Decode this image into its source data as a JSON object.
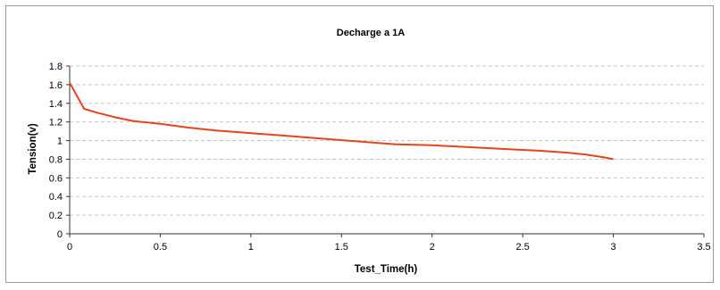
{
  "chart_data": {
    "type": "line",
    "title": "Decharge a 1A",
    "xlabel": "Test_Time(h)",
    "ylabel": "Tension(v)",
    "xlim": [
      0,
      3.5
    ],
    "ylim": [
      0,
      1.8
    ],
    "xticks": [
      "0",
      "0.5",
      "1",
      "1.5",
      "2",
      "2.5",
      "3",
      "3.5"
    ],
    "yticks": [
      "0",
      "0.2",
      "0.4",
      "0.6",
      "0.8",
      "1",
      "1.2",
      "1.4",
      "1.6",
      "1.8"
    ],
    "grid": "horizontal dashed",
    "legend": "none",
    "line_color": "#e8431a",
    "series": [
      {
        "x": [
          0,
          0.08,
          0.15,
          0.25,
          0.35,
          0.5,
          0.65,
          0.8,
          1.0,
          1.2,
          1.4,
          1.6,
          1.8,
          2.0,
          2.2,
          2.4,
          2.6,
          2.75,
          2.85,
          2.95,
          3.0
        ],
        "y": [
          1.62,
          1.34,
          1.3,
          1.25,
          1.21,
          1.18,
          1.14,
          1.11,
          1.08,
          1.05,
          1.02,
          0.99,
          0.96,
          0.95,
          0.93,
          0.91,
          0.89,
          0.87,
          0.85,
          0.82,
          0.8
        ]
      }
    ]
  }
}
